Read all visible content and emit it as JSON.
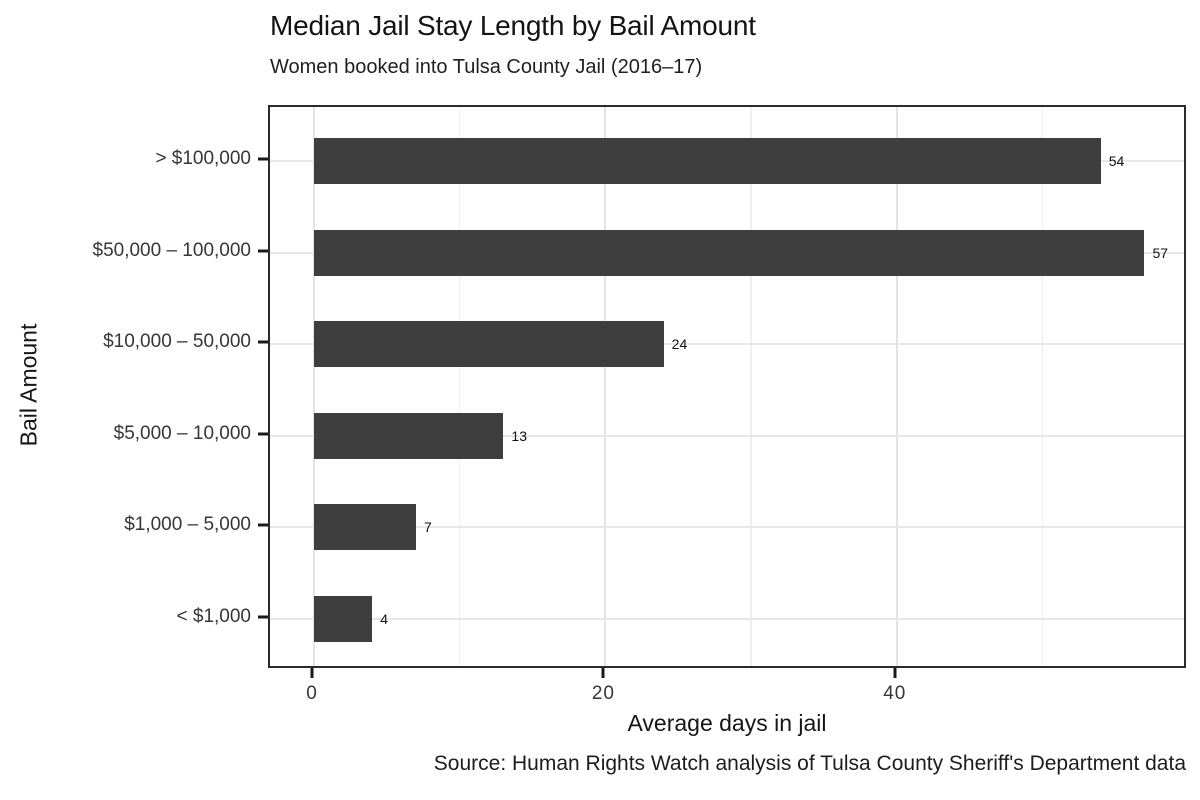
{
  "chart_data": {
    "type": "bar",
    "orientation": "horizontal",
    "title": "Median Jail Stay Length by Bail Amount",
    "subtitle": "Women booked into Tulsa County Jail (2016–17)",
    "categories": [
      "> $100,000",
      "$50,000 – 100,000",
      "$10,000 – 50,000",
      "$5,000 – 10,000",
      "$1,000 – 5,000",
      "< $1,000"
    ],
    "values": [
      54,
      57,
      24,
      13,
      7,
      4
    ],
    "xlabel": "Average days in jail",
    "ylabel": "Bail Amount",
    "xlim": [
      0,
      60
    ],
    "x_ticks": [
      0,
      20,
      40
    ],
    "x_minor_ticks": [
      10,
      30,
      50
    ],
    "grid": "vertical major+minor, horizontal major at row centers",
    "legend": "none",
    "bar_color": "#3e3e3e",
    "caption": "Source: Human Rights Watch analysis of Tulsa County Sheriff's Department data"
  }
}
